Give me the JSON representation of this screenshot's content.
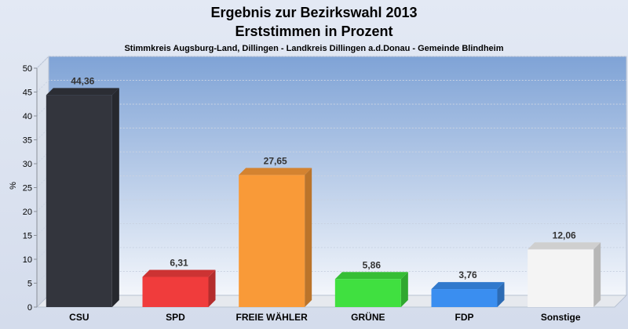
{
  "chart_data": {
    "type": "bar",
    "title": "Ergebnis zur Bezirkswahl 2013",
    "subtitle": "Erststimmen in Prozent",
    "caption": "Stimmkreis Augsburg-Land, Dillingen - Landkreis Dillingen a.d.Donau - Gemeinde Blindheim",
    "xlabel": "",
    "ylabel": "%",
    "ylim": [
      0,
      50
    ],
    "yticks": [
      0,
      5,
      10,
      15,
      20,
      25,
      30,
      35,
      40,
      45,
      50
    ],
    "grid": true,
    "legend": "none",
    "categories": [
      "CSU",
      "SPD",
      "FREIE WÄHLER",
      "GRÜNE",
      "FDP",
      "Sonstige"
    ],
    "values": [
      44.36,
      6.31,
      27.65,
      5.86,
      3.76,
      12.06
    ],
    "value_labels": [
      "44,36",
      "6,31",
      "27,65",
      "5,86",
      "3,76",
      "12,06"
    ],
    "colors": [
      "#33353d",
      "#f03c3c",
      "#f99a38",
      "#40e040",
      "#3a8ef0",
      "#f4f4f4"
    ]
  }
}
